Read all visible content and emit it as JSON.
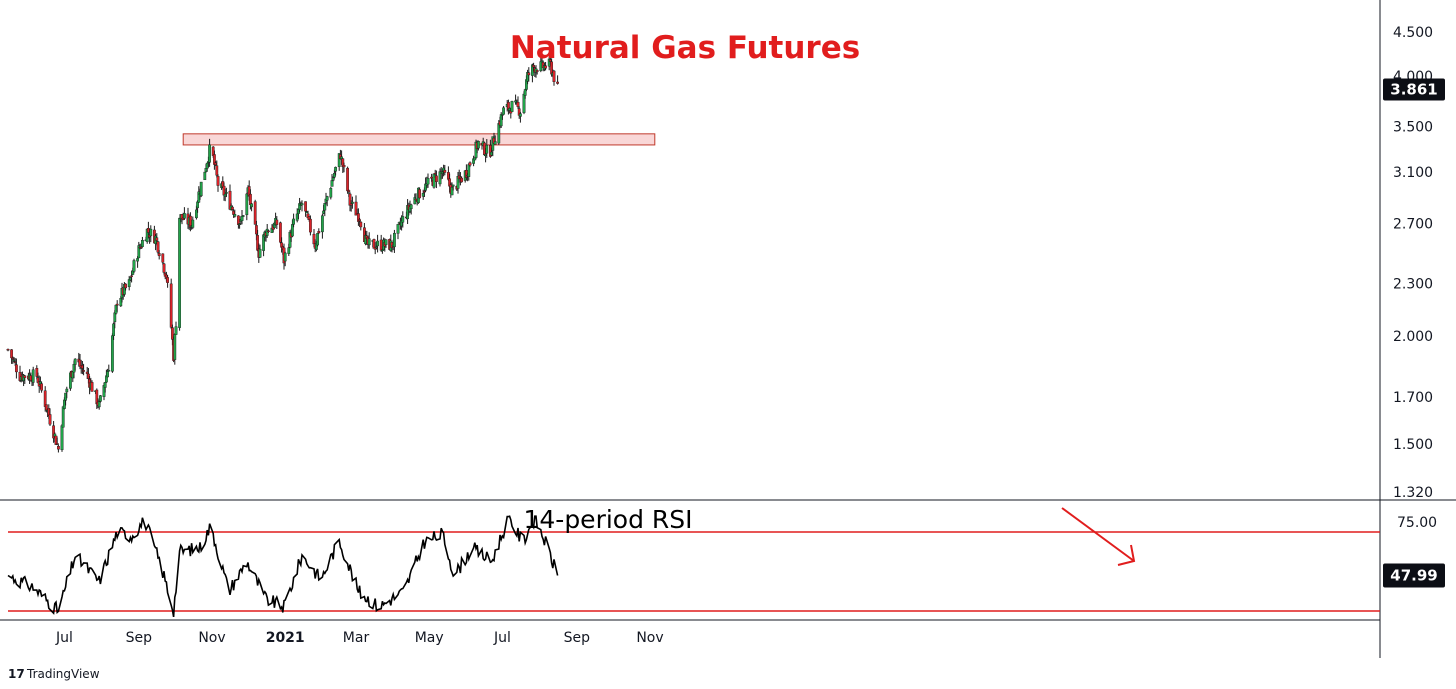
{
  "chart_data": [
    {
      "type": "candlestick",
      "title": "Natural Gas Futures",
      "y_ticks": [
        "4.500",
        "4.000",
        "3.500",
        "3.100",
        "2.700",
        "2.300",
        "2.000",
        "1.700",
        "1.500",
        "1.320"
      ],
      "last_price": "3.861",
      "x_ticks": [
        "Jul",
        "Sep",
        "Nov",
        "2021",
        "Mar",
        "May",
        "Jul",
        "Sep",
        "Nov"
      ],
      "ylim": [
        1.32,
        4.6
      ],
      "log_scale": true,
      "resistance_zone": {
        "low": 3.33,
        "high": 3.43,
        "color": "#f4b6b6"
      },
      "colors": {
        "up": "#22a34a",
        "down": "#d8232a",
        "wick": "#1a1a1a"
      },
      "keypoints": [
        [
          "2020-05-15",
          1.93
        ],
        [
          "2020-05-25",
          1.8
        ],
        [
          "2020-06-08",
          1.8
        ],
        [
          "2020-06-18",
          1.62
        ],
        [
          "2020-06-26",
          1.48
        ],
        [
          "2020-07-02",
          1.72
        ],
        [
          "2020-07-10",
          1.88
        ],
        [
          "2020-07-20",
          1.8
        ],
        [
          "2020-07-30",
          1.66
        ],
        [
          "2020-08-07",
          1.85
        ],
        [
          "2020-08-14",
          2.2
        ],
        [
          "2020-08-24",
          2.3
        ],
        [
          "2020-08-31",
          2.5
        ],
        [
          "2020-09-08",
          2.65
        ],
        [
          "2020-09-15",
          2.6
        ],
        [
          "2020-09-24",
          2.35
        ],
        [
          "2020-09-30",
          1.9
        ],
        [
          "2020-10-02",
          2.08
        ],
        [
          "2020-10-05",
          2.75
        ],
        [
          "2020-10-15",
          2.7
        ],
        [
          "2020-10-23",
          3.0
        ],
        [
          "2020-10-31",
          3.32
        ],
        [
          "2020-11-06",
          3.0
        ],
        [
          "2020-11-13",
          2.9
        ],
        [
          "2020-11-25",
          2.7
        ],
        [
          "2020-12-01",
          2.95
        ],
        [
          "2020-12-10",
          2.5
        ],
        [
          "2020-12-16",
          2.65
        ],
        [
          "2020-12-25",
          2.7
        ],
        [
          "2020-12-31",
          2.45
        ],
        [
          "2021-01-08",
          2.7
        ],
        [
          "2021-01-15",
          2.85
        ],
        [
          "2021-01-26",
          2.55
        ],
        [
          "2021-02-05",
          2.9
        ],
        [
          "2021-02-16",
          3.25
        ],
        [
          "2021-02-24",
          2.85
        ],
        [
          "2021-03-04",
          2.75
        ],
        [
          "2021-03-10",
          2.55
        ],
        [
          "2021-03-22",
          2.55
        ],
        [
          "2021-03-31",
          2.55
        ],
        [
          "2021-04-10",
          2.75
        ],
        [
          "2021-04-20",
          2.9
        ],
        [
          "2021-04-30",
          3.0
        ],
        [
          "2021-05-12",
          3.1
        ],
        [
          "2021-05-20",
          2.95
        ],
        [
          "2021-06-01",
          3.1
        ],
        [
          "2021-06-11",
          3.35
        ],
        [
          "2021-06-20",
          3.25
        ],
        [
          "2021-06-26",
          3.45
        ],
        [
          "2021-07-02",
          3.65
        ],
        [
          "2021-07-10",
          3.7
        ],
        [
          "2021-07-16",
          3.65
        ],
        [
          "2021-07-22",
          4.0
        ],
        [
          "2021-07-27",
          4.1
        ],
        [
          "2021-08-03",
          4.1
        ],
        [
          "2021-08-10",
          4.12
        ],
        [
          "2021-08-16",
          3.86
        ]
      ]
    },
    {
      "type": "line",
      "label": "14-period RSI",
      "last_value": "47.99",
      "y_ticks": [
        "75.00"
      ],
      "levels": [
        70,
        30
      ],
      "ylim": [
        26,
        79
      ],
      "keypoints": [
        [
          "2020-05-15",
          48
        ],
        [
          "2020-06-05",
          42
        ],
        [
          "2020-06-26",
          30
        ],
        [
          "2020-07-10",
          58
        ],
        [
          "2020-07-30",
          45
        ],
        [
          "2020-08-14",
          70
        ],
        [
          "2020-08-26",
          68
        ],
        [
          "2020-09-06",
          76
        ],
        [
          "2020-09-20",
          52
        ],
        [
          "2020-09-30",
          30
        ],
        [
          "2020-10-05",
          60
        ],
        [
          "2020-10-22",
          62
        ],
        [
          "2020-10-31",
          73
        ],
        [
          "2020-11-15",
          40
        ],
        [
          "2020-11-30",
          55
        ],
        [
          "2020-12-16",
          36
        ],
        [
          "2020-12-31",
          32
        ],
        [
          "2021-01-15",
          58
        ],
        [
          "2021-01-31",
          46
        ],
        [
          "2021-02-15",
          66
        ],
        [
          "2021-03-03",
          40
        ],
        [
          "2021-03-20",
          32
        ],
        [
          "2021-04-10",
          40
        ],
        [
          "2021-04-27",
          65
        ],
        [
          "2021-05-12",
          69
        ],
        [
          "2021-05-22",
          48
        ],
        [
          "2021-06-06",
          62
        ],
        [
          "2021-06-22",
          55
        ],
        [
          "2021-07-06",
          77
        ],
        [
          "2021-07-18",
          65
        ],
        [
          "2021-07-28",
          77
        ],
        [
          "2021-08-05",
          66
        ],
        [
          "2021-08-16",
          48
        ]
      ]
    }
  ],
  "branding": {
    "logo_text": "TradingView"
  },
  "colors": {
    "title": "#e11d1d",
    "arrow": "#e11d1d",
    "rsi_level": "#e11d1d",
    "tag_bg": "#0c0e15"
  }
}
